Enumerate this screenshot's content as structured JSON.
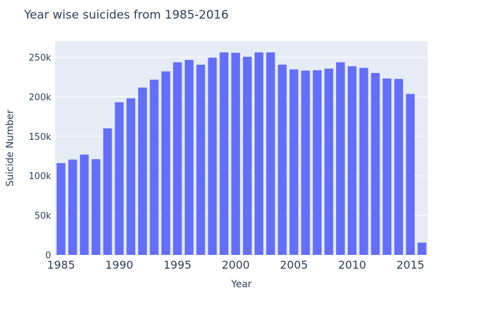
{
  "chart_data": {
    "type": "bar",
    "title": "Year wise suicides from 1985-2016",
    "xlabel": "Year",
    "ylabel": "Suicide Number",
    "x": [
      1985,
      1986,
      1987,
      1988,
      1989,
      1990,
      1991,
      1992,
      1993,
      1994,
      1995,
      1996,
      1997,
      1998,
      1999,
      2000,
      2001,
      2002,
      2003,
      2004,
      2005,
      2006,
      2007,
      2008,
      2009,
      2010,
      2011,
      2012,
      2013,
      2014,
      2015,
      2016
    ],
    "values": [
      116000,
      120500,
      126800,
      121000,
      160000,
      193000,
      198000,
      211500,
      221500,
      232000,
      243500,
      246500,
      240500,
      249500,
      256000,
      255500,
      250500,
      256000,
      256000,
      240500,
      234500,
      233000,
      233500,
      235500,
      243500,
      238500,
      236500,
      230000,
      223000,
      222500,
      203500,
      15500
    ],
    "xlim": [
      1984.5,
      2016.5
    ],
    "ylim": [
      0,
      270000
    ],
    "y_ticks": [
      0,
      50000,
      100000,
      150000,
      200000,
      250000
    ],
    "y_tick_labels": [
      "0",
      "50k",
      "100k",
      "150k",
      "200k",
      "250k"
    ],
    "x_ticks": [
      1985,
      1990,
      1995,
      2000,
      2005,
      2010,
      2015
    ],
    "x_tick_labels": [
      "1985",
      "1990",
      "1995",
      "2000",
      "2005",
      "2010",
      "2015"
    ],
    "grid": true,
    "colors": {
      "bar": "#636efa",
      "plot_bg": "#e5ecf6",
      "grid": "#ffffff",
      "text": "#2a3f5f"
    }
  }
}
